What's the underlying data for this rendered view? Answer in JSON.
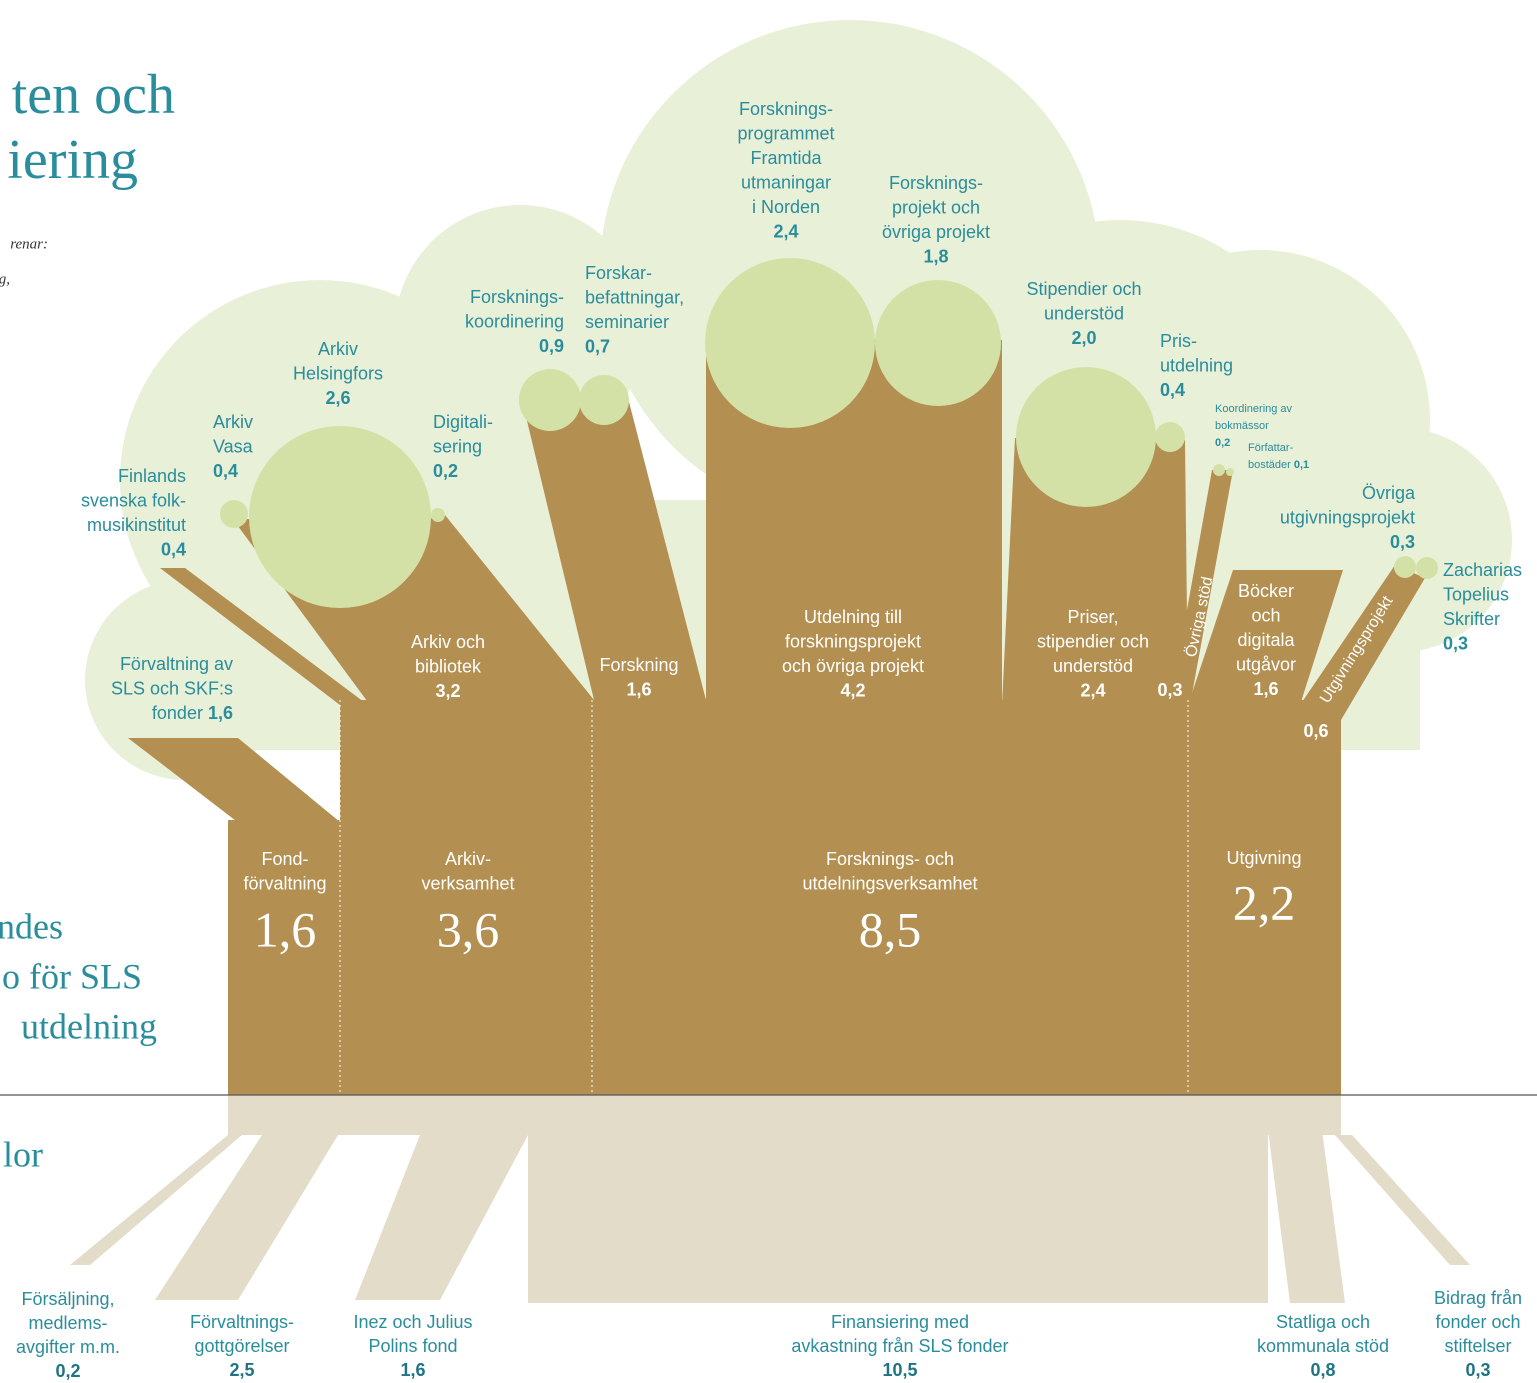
{
  "page_fragments": {
    "title_lines": [
      "ten och",
      "iering"
    ],
    "intro_lines": [
      "renar:",
      "g,"
    ],
    "side_lines": [
      "ndes",
      "o för SLS",
      "utdelning"
    ],
    "roots_heading": "lor"
  },
  "branches": [
    {
      "lines": [
        "Förvaltning av",
        "SLS och SKF:s",
        "fonder"
      ],
      "value": "1,6"
    },
    {
      "lines": [
        "Finlands",
        "svenska folk-",
        "musikinstitut"
      ],
      "value": "0,4"
    },
    {
      "lines": [
        "Arkiv",
        "Vasa"
      ],
      "value": "0,4"
    },
    {
      "lines": [
        "Arkiv",
        "Helsingfors"
      ],
      "value": "2,6"
    },
    {
      "lines": [
        "Digitali-",
        "sering"
      ],
      "value": "0,2"
    },
    {
      "lines": [
        "Forsknings-",
        "koordinering"
      ],
      "value": "0,9"
    },
    {
      "lines": [
        "Forskar-",
        "befattningar,",
        "seminarier"
      ],
      "value": "0,7"
    },
    {
      "lines": [
        "Forsknings-",
        "programmet",
        "Framtida",
        "utmaningar",
        "i Norden"
      ],
      "value": "2,4"
    },
    {
      "lines": [
        "Forsknings-",
        "projekt och",
        "övriga projekt"
      ],
      "value": "1,8"
    },
    {
      "lines": [
        "Stipendier och",
        "understöd"
      ],
      "value": "2,0"
    },
    {
      "lines": [
        "Pris-",
        "utdelning"
      ],
      "value": "0,4"
    },
    {
      "lines": [
        "Koordinering av",
        "bokmässor"
      ],
      "value": "0,2"
    },
    {
      "lines": [
        "Författar-",
        "bostäder"
      ],
      "value": "0,1"
    },
    {
      "lines": [
        "Övriga",
        "utgivningsprojekt"
      ],
      "value": "0,3"
    },
    {
      "lines": [
        "Zacharias",
        "Topelius",
        "Skrifter"
      ],
      "value": "0,3"
    }
  ],
  "trunk_sections": [
    {
      "lines": [
        "Arkiv och",
        "bibliotek"
      ],
      "value": "3,2"
    },
    {
      "lines": [
        "Forskning"
      ],
      "value": "1,6"
    },
    {
      "lines": [
        "Utdelning till",
        "forskningsprojekt",
        "och övriga projekt"
      ],
      "value": "4,2"
    },
    {
      "lines": [
        "Priser,",
        "stipendier och",
        "understöd"
      ],
      "value": "2,4"
    },
    {
      "lines": [
        "Övriga stöd"
      ],
      "value": "0,3"
    },
    {
      "lines": [
        "Böcker",
        "och",
        "digitala",
        "utgåvor"
      ],
      "value": "1,6"
    },
    {
      "lines": [
        "Utgivningsprojekt"
      ],
      "value": "0,6"
    }
  ],
  "trunks": [
    {
      "lines": [
        "Fond-",
        "förvaltning"
      ],
      "value": "1,6"
    },
    {
      "lines": [
        "Arkiv-",
        "verksamhet"
      ],
      "value": "3,6"
    },
    {
      "lines": [
        "Forsknings- och",
        "utdelningsverksamhet"
      ],
      "value": "8,5"
    },
    {
      "lines": [
        "Utgivning"
      ],
      "value": "2,2"
    }
  ],
  "roots": [
    {
      "lines": [
        "Försäljning,",
        "medlems-",
        "avgifter m.m."
      ],
      "value": "0,2"
    },
    {
      "lines": [
        "Förvaltnings-",
        "gottgörelser"
      ],
      "value": "2,5"
    },
    {
      "lines": [
        "Inez och Julius",
        "Polins fond"
      ],
      "value": "1,6"
    },
    {
      "lines": [
        "Finansiering med",
        "avkastning från SLS fonder"
      ],
      "value": "10,5"
    },
    {
      "lines": [
        "Statliga och",
        "kommunala stöd"
      ],
      "value": "0,8"
    },
    {
      "lines": [
        "Bidrag från",
        "fonder och",
        "stiftelser"
      ],
      "value": "0,3"
    }
  ]
}
